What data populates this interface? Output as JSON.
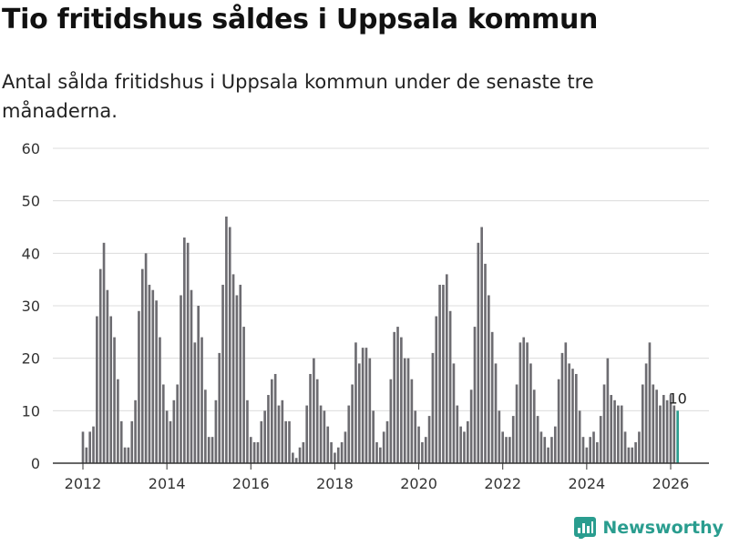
{
  "header": {
    "title": "Tio fritidshus såldes i Uppsala kommun",
    "subtitle": "Antal sålda fritidshus i Uppsala kommun under de senaste tre månaderna."
  },
  "brand": {
    "name": "Newsworthy",
    "icon": "newsworthy-logo-icon",
    "color": "#2a9d8f"
  },
  "chart_data": {
    "type": "bar",
    "title": "Tio fritidshus såldes i Uppsala kommun",
    "xlabel": "",
    "ylabel": "",
    "ylim": [
      0,
      60
    ],
    "yticks": [
      0,
      10,
      20,
      30,
      40,
      50,
      60
    ],
    "xticks": [
      {
        "label": "2012",
        "value": 2012
      },
      {
        "label": "2014",
        "value": 2014
      },
      {
        "label": "2016",
        "value": 2016
      },
      {
        "label": "2018",
        "value": 2018
      },
      {
        "label": "2020",
        "value": 2020
      },
      {
        "label": "2022",
        "value": 2022
      },
      {
        "label": "2024",
        "value": 2024
      },
      {
        "label": "2026",
        "value": 2026
      }
    ],
    "x_start": 2012.0,
    "x_step": 0.08333,
    "grid": true,
    "bar_color": "#6d6c71",
    "highlight_color": "#2a9d8f",
    "highlight_label": "10",
    "values": [
      6,
      3,
      6,
      7,
      28,
      37,
      42,
      33,
      28,
      24,
      16,
      8,
      3,
      3,
      8,
      12,
      29,
      37,
      40,
      34,
      33,
      31,
      24,
      15,
      10,
      8,
      12,
      15,
      32,
      43,
      42,
      33,
      23,
      30,
      24,
      14,
      5,
      5,
      12,
      21,
      34,
      47,
      45,
      36,
      32,
      34,
      26,
      12,
      5,
      4,
      4,
      8,
      10,
      13,
      16,
      17,
      11,
      12,
      8,
      8,
      2,
      1,
      3,
      4,
      11,
      17,
      20,
      16,
      11,
      10,
      7,
      4,
      2,
      3,
      4,
      6,
      11,
      15,
      23,
      19,
      22,
      22,
      20,
      10,
      4,
      3,
      6,
      8,
      16,
      25,
      26,
      24,
      20,
      20,
      16,
      10,
      7,
      4,
      5,
      9,
      21,
      28,
      34,
      34,
      36,
      29,
      19,
      11,
      7,
      6,
      8,
      14,
      26,
      42,
      45,
      38,
      32,
      25,
      19,
      10,
      6,
      5,
      5,
      9,
      15,
      23,
      24,
      23,
      19,
      14,
      9,
      6,
      5,
      3,
      5,
      7,
      16,
      21,
      23,
      19,
      18,
      17,
      10,
      5,
      3,
      5,
      6,
      4,
      9,
      15,
      20,
      13,
      12,
      11,
      11,
      6,
      3,
      3,
      4,
      6,
      15,
      19,
      23,
      15,
      14,
      11,
      13,
      12,
      13,
      11,
      10
    ]
  }
}
